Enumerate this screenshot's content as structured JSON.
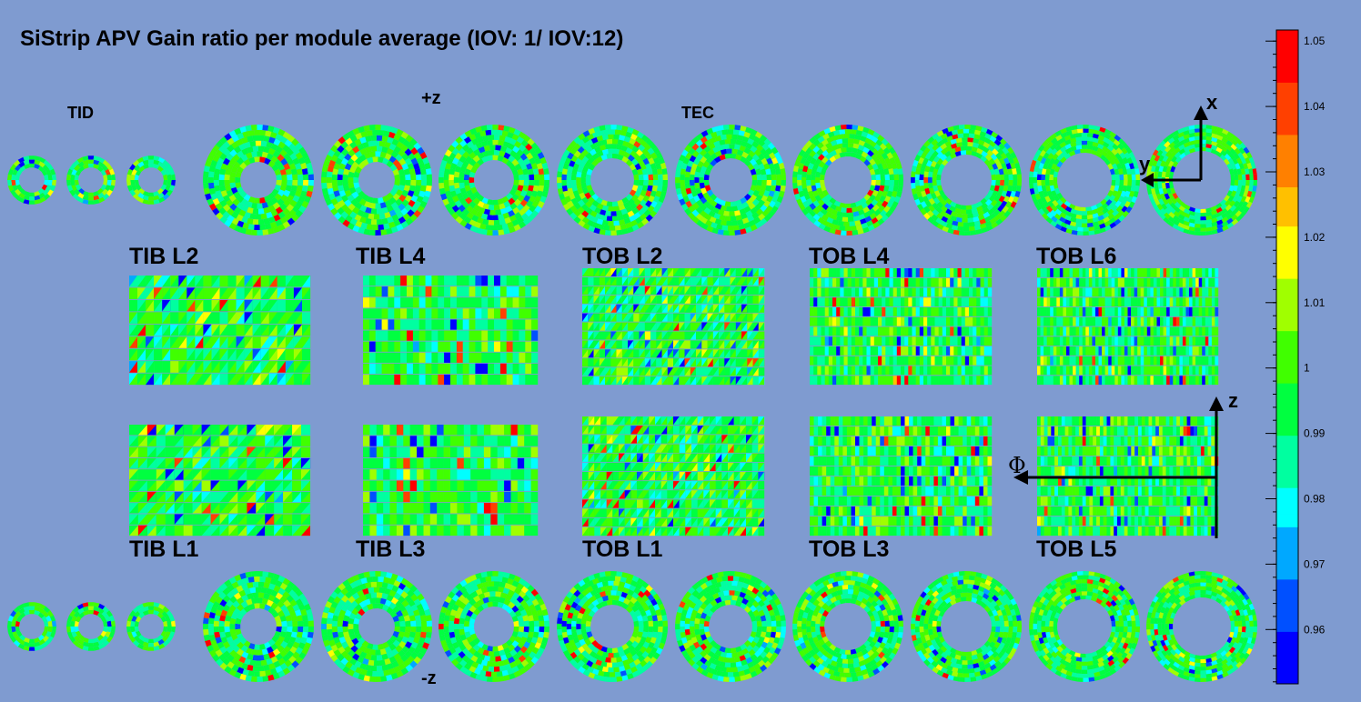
{
  "title": "SiStrip APV Gain ratio per module average (IOV: 1/ IOV:12)",
  "colors": {
    "background": "#7f9bd0",
    "palette": [
      "#0000ff",
      "#0050ff",
      "#00a8ff",
      "#00ffff",
      "#00ffa0",
      "#00ff40",
      "#40ff00",
      "#a0ff00",
      "#ffff00",
      "#ffc000",
      "#ff8000",
      "#ff4000",
      "#ff0000"
    ]
  },
  "labels": {
    "tid": "TID",
    "tec": "TEC",
    "plus_z": "+z",
    "minus_z": "-z",
    "axis_x": "x",
    "axis_y": "y",
    "axis_z": "z",
    "axis_phi": "Φ"
  },
  "barrel_layers": {
    "top_row": [
      "TIB L2",
      "TIB L4",
      "TOB L2",
      "TOB L4",
      "TOB L6"
    ],
    "bottom_row": [
      "TIB L1",
      "TIB L3",
      "TOB L1",
      "TOB L3",
      "TOB L5"
    ]
  },
  "chart_data": {
    "type": "heatmap",
    "title": "SiStrip APV Gain ratio per module average (IOV: 1/ IOV:12)",
    "colorbar": {
      "min": 0.9517,
      "max": 1.0517,
      "tick_values": [
        0.96,
        0.97,
        0.98,
        0.99,
        1,
        1.01,
        1.02,
        1.03,
        1.04,
        1.05
      ],
      "tick_labels": [
        "0.96",
        "0.97",
        "0.98",
        "0.99",
        "1",
        "1.01",
        "1.02",
        "1.03",
        "1.04",
        "1.05"
      ]
    },
    "value_distribution": {
      "typical_center": 0.995,
      "typical_spread": 0.012,
      "outlier_low": 0.955,
      "outlier_high": 1.05
    },
    "regions": [
      "TID+",
      "TEC+",
      "TIB",
      "TOB",
      "TID-",
      "TEC-"
    ]
  }
}
